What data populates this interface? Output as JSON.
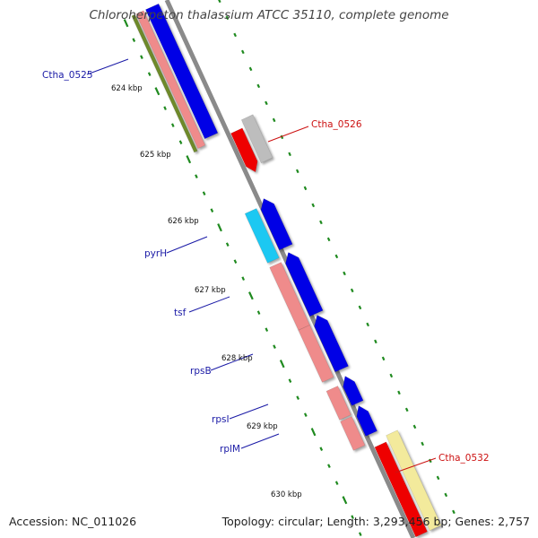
{
  "title": "Chloroherpeton thalassium ATCC 35110, complete genome",
  "footer": {
    "accession": "Accession: NC_011026",
    "topology": "Topology: circular; Length: 3,293,456 bp; Genes: 2,757"
  },
  "kbp_labels": [
    "624 kbp",
    "625 kbp",
    "626 kbp",
    "627 kbp",
    "628 kbp",
    "629 kbp",
    "630 kbp"
  ],
  "gene_labels": [
    {
      "id": "Ctha_0525",
      "text": "Ctha_0525",
      "color": "#1a1aa6"
    },
    {
      "id": "Ctha_0526",
      "text": "Ctha_0526",
      "color": "#cc1111"
    },
    {
      "id": "pyrH",
      "text": "pyrH",
      "color": "#1a1aa6"
    },
    {
      "id": "tsf",
      "text": "tsf",
      "color": "#1a1aa6"
    },
    {
      "id": "rpsB",
      "text": "rpsB",
      "color": "#1a1aa6"
    },
    {
      "id": "rpsI",
      "text": "rpsI",
      "color": "#1a1aa6"
    },
    {
      "id": "rplM",
      "text": "rplM",
      "color": "#1a1aa6"
    },
    {
      "id": "Ctha_0532",
      "text": "Ctha_0532",
      "color": "#cc1111"
    }
  ],
  "colors": {
    "backbone": "#8a8a8a",
    "blue_gene": "#0000e6",
    "pink_gene": "#ef8b8b",
    "red_gene": "#ee0000",
    "gray_gene": "#bdbdbd",
    "cyan_gene": "#1ec8f2",
    "yellow_gene": "#f3ea9c",
    "olive_gene": "#6e8a2a",
    "tick": "#1f8a1f"
  }
}
